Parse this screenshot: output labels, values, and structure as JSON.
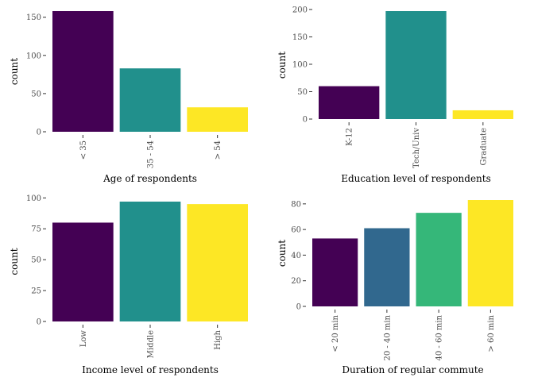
{
  "chart_data": [
    {
      "type": "bar",
      "xlabel": "Age of respondents",
      "ylabel": "count",
      "categories": [
        "< 35",
        "35 - 54",
        "> 54"
      ],
      "values": [
        158,
        83,
        32
      ],
      "colors": [
        "#440154",
        "#21908C",
        "#FDE725"
      ],
      "ylim": [
        0,
        158
      ],
      "yticks": [
        0,
        50,
        100,
        150
      ],
      "grid": false,
      "legend": "none"
    },
    {
      "type": "bar",
      "xlabel": "Education level of respondents",
      "ylabel": "count",
      "categories": [
        "K-12",
        "Tech/Univ",
        "Graduate"
      ],
      "values": [
        60,
        197,
        16
      ],
      "colors": [
        "#440154",
        "#21908C",
        "#FDE725"
      ],
      "ylim": [
        0,
        197
      ],
      "yticks": [
        0,
        50,
        100,
        150,
        200
      ],
      "grid": false,
      "legend": "none"
    },
    {
      "type": "bar",
      "xlabel": "Income level of respondents",
      "ylabel": "count",
      "categories": [
        "Low",
        "Middle",
        "High"
      ],
      "values": [
        80,
        97,
        95
      ],
      "colors": [
        "#440154",
        "#21908C",
        "#FDE725"
      ],
      "ylim": [
        0,
        97
      ],
      "yticks": [
        0,
        25,
        50,
        75,
        100
      ],
      "grid": false,
      "legend": "none"
    },
    {
      "type": "bar",
      "xlabel": "Duration of regular commute",
      "ylabel": "count",
      "categories": [
        "< 20 min",
        "20 - 40 min",
        "40 - 60 min",
        "> 60 min"
      ],
      "values": [
        53,
        61,
        73,
        83
      ],
      "colors": [
        "#440154",
        "#31688E",
        "#35B779",
        "#FDE725"
      ],
      "ylim": [
        0,
        83
      ],
      "yticks": [
        0,
        20,
        40,
        60,
        80
      ],
      "grid": false,
      "legend": "none"
    }
  ]
}
